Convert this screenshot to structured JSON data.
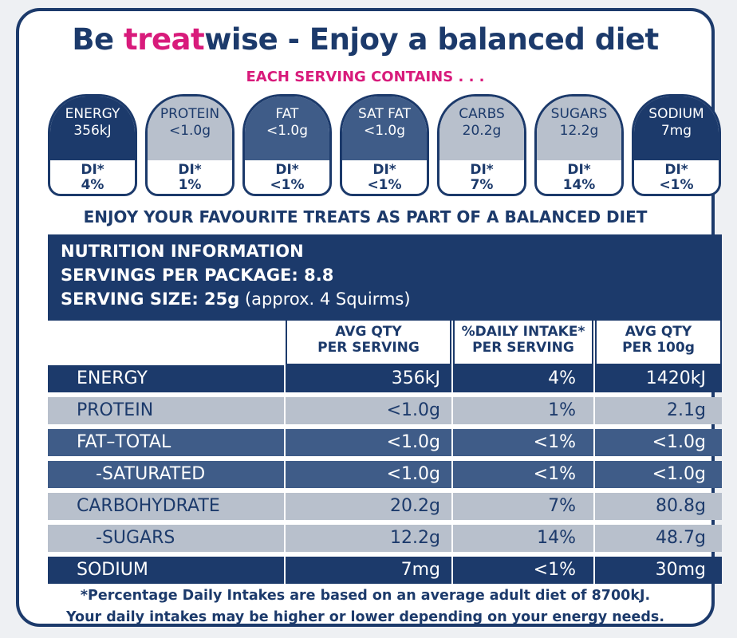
{
  "headline": {
    "part1": "Be ",
    "accent": "treat",
    "part2": "wise - Enjoy a balanced diet"
  },
  "subheading": "EACH SERVING CONTAINS . . .",
  "badges": [
    {
      "name": "ENERGY",
      "value": "356kJ",
      "di_label": "DI*",
      "di_value": "4%"
    },
    {
      "name": "PROTEIN",
      "value": "<1.0g",
      "di_label": "DI*",
      "di_value": "1%"
    },
    {
      "name": "FAT",
      "value": "<1.0g",
      "di_label": "DI*",
      "di_value": "<1%"
    },
    {
      "name": "SAT FAT",
      "value": "<1.0g",
      "di_label": "DI*",
      "di_value": "<1%"
    },
    {
      "name": "CARBS",
      "value": "20.2g",
      "di_label": "DI*",
      "di_value": "7%"
    },
    {
      "name": "SUGARS",
      "value": "12.2g",
      "di_label": "DI*",
      "di_value": "14%"
    },
    {
      "name": "SODIUM",
      "value": "7mg",
      "di_label": "DI*",
      "di_value": "<1%"
    }
  ],
  "enjoy_line": "ENJOY YOUR FAVOURITE TREATS AS PART OF A BALANCED DIET",
  "nutrition_info": {
    "title": "NUTRITION INFORMATION",
    "servings_per_package": "SERVINGS PER PACKAGE: 8.8",
    "serving_size_label": "SERVING SIZE: 25g",
    "serving_size_note": " (approx. 4 Squirms)"
  },
  "table": {
    "headers": [
      {
        "line1": "AVG QTY",
        "line2": "PER SERVING"
      },
      {
        "line1": "%DAILY INTAKE*",
        "line2": "PER SERVING"
      },
      {
        "line1": "AVG QTY",
        "line2": "PER 100g"
      }
    ],
    "rows": [
      {
        "name": "ENERGY",
        "per_serving": "356kJ",
        "daily_intake": "4%",
        "per_100g": "1420kJ"
      },
      {
        "name": "PROTEIN",
        "per_serving": "<1.0g",
        "daily_intake": "1%",
        "per_100g": "2.1g"
      },
      {
        "name": "FAT–TOTAL",
        "per_serving": "<1.0g",
        "daily_intake": "<1%",
        "per_100g": "<1.0g"
      },
      {
        "name": "-SATURATED",
        "per_serving": "<1.0g",
        "daily_intake": "<1%",
        "per_100g": "<1.0g"
      },
      {
        "name": "CARBOHYDRATE",
        "per_serving": "20.2g",
        "daily_intake": "7%",
        "per_100g": "80.8g"
      },
      {
        "name": "-SUGARS",
        "per_serving": "12.2g",
        "daily_intake": "14%",
        "per_100g": "48.7g"
      },
      {
        "name": "SODIUM",
        "per_serving": "7mg",
        "daily_intake": "<1%",
        "per_100g": "30mg"
      }
    ]
  },
  "footnote": {
    "line1": "*Percentage Daily Intakes are based on an average adult diet of 8700kJ.",
    "line2": "Your daily intakes may be higher or lower depending on your energy needs."
  },
  "colors": {
    "navy": "#1c3a6b",
    "mid_blue": "#3f5c88",
    "light_grey": "#b8c0cc",
    "pink": "#d81b7b"
  }
}
